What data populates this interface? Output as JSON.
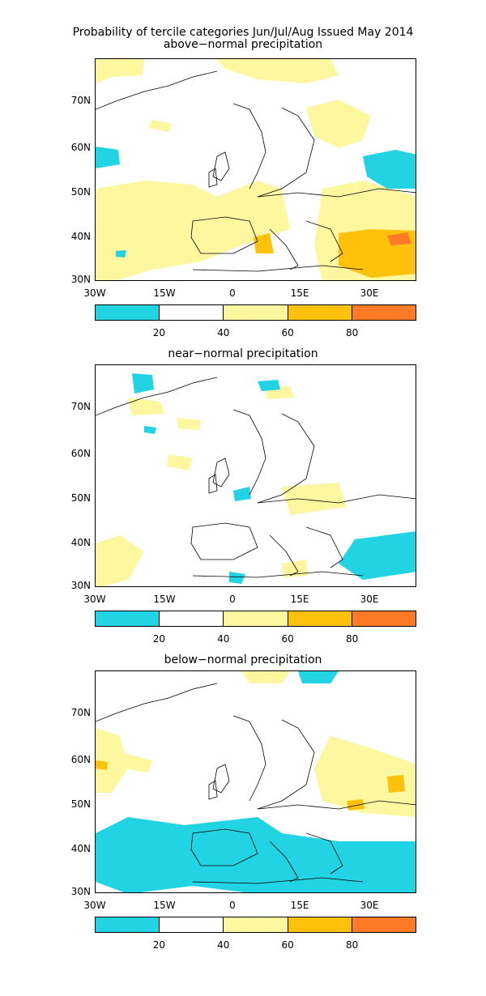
{
  "title": "Probability of tercile categories Jun/Jul/Aug Issued May 2014",
  "panels": [
    {
      "subtitle": "above−normal precipitation"
    },
    {
      "subtitle": "near−normal precipitation"
    },
    {
      "subtitle": "below−normal precipitation"
    }
  ],
  "axes": {
    "lat_labels": [
      "70N",
      "60N",
      "50N",
      "40N",
      "30N"
    ],
    "lon_labels": [
      "30W",
      "15W",
      "0",
      "15E",
      "30E"
    ]
  },
  "colorbar": {
    "colors": [
      "#22d3e3",
      "#ffffff",
      "#fdf79f",
      "#fec10c",
      "#fd7a26"
    ],
    "labels": [
      "20",
      "40",
      "60",
      "80"
    ]
  }
}
